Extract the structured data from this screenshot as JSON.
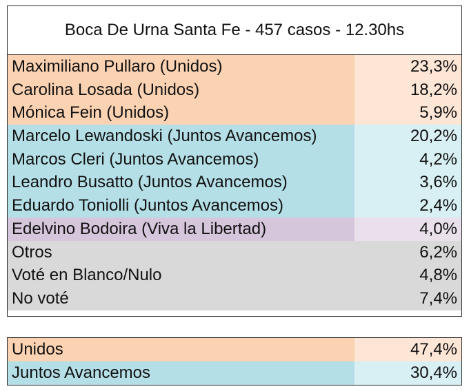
{
  "title": "Boca De Urna Santa Fe - 457 casos - 12.30hs",
  "colors": {
    "unidos_name": "#fbd2b2",
    "unidos_pct": "#fde6d6",
    "juntos_name": "#b5dfe7",
    "juntos_pct": "#d8eff3",
    "libertad_name": "#d6c6dc",
    "libertad_pct": "#e9e0ec",
    "otros_name": "#d9d9d9",
    "otros_pct": "#d9d9d9"
  },
  "candidates": [
    {
      "name": "Maximiliano Pullaro (Unidos)",
      "pct": "23,3%",
      "group": "unidos"
    },
    {
      "name": "Carolina Losada (Unidos)",
      "pct": "18,2%",
      "group": "unidos"
    },
    {
      "name": "Mónica Fein (Unidos)",
      "pct": "5,9%",
      "group": "unidos"
    },
    {
      "name": "Marcelo Lewandoski (Juntos Avancemos)",
      "pct": "20,2%",
      "group": "juntos"
    },
    {
      "name": "Marcos Cleri (Juntos Avancemos)",
      "pct": "4,2%",
      "group": "juntos"
    },
    {
      "name": "Leandro Busatto (Juntos Avancemos)",
      "pct": "3,6%",
      "group": "juntos"
    },
    {
      "name": "Eduardo Toniolli (Juntos Avancemos)",
      "pct": "2,4%",
      "group": "juntos"
    },
    {
      "name": "Edelvino Bodoira (Viva la Libertad)",
      "pct": "4,0%",
      "group": "libertad"
    },
    {
      "name": "Otros",
      "pct": "6,2%",
      "group": "otros"
    },
    {
      "name": "Voté en Blanco/Nulo",
      "pct": "4,8%",
      "group": "otros"
    },
    {
      "name": "No voté",
      "pct": "7,4%",
      "group": "otros"
    }
  ],
  "summary": [
    {
      "name": "Unidos",
      "pct": "47,4%",
      "group": "unidos"
    },
    {
      "name": "Juntos Avancemos",
      "pct": "30,4%",
      "group": "juntos"
    }
  ]
}
